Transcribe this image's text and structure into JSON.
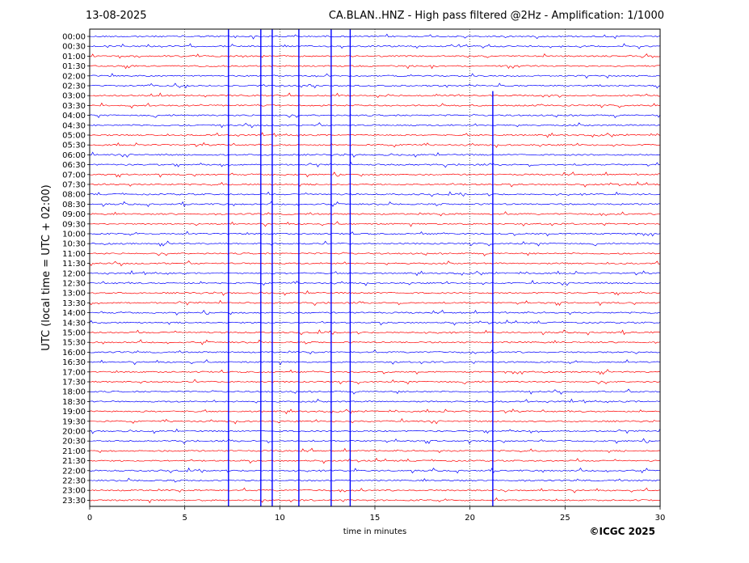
{
  "header": {
    "date": "13-08-2025",
    "title": "CA.BLAN..HNZ - High pass filtered @2Hz - Amplification: 1/1000"
  },
  "footer": {
    "copyright": "©ICGC 2025"
  },
  "chart_data": {
    "type": "line",
    "title": "CA.BLAN..HNZ - High pass filtered @2Hz - Amplification: 1/1000",
    "xlabel": "time in minutes",
    "ylabel": "UTC (local time = UTC + 02:00)",
    "xlim": [
      0,
      30
    ],
    "xticks": [
      0,
      5,
      10,
      15,
      20,
      25,
      30
    ],
    "grid": "vertical dotted lines at 5-minute ticks",
    "row_labels": [
      "00:00",
      "00:30",
      "01:00",
      "01:30",
      "02:00",
      "02:30",
      "03:00",
      "03:30",
      "04:00",
      "04:30",
      "05:00",
      "05:30",
      "06:00",
      "06:30",
      "07:00",
      "07:30",
      "08:00",
      "08:30",
      "09:00",
      "09:30",
      "10:00",
      "10:30",
      "11:00",
      "11:30",
      "12:00",
      "12:30",
      "13:00",
      "13:30",
      "14:00",
      "14:30",
      "15:00",
      "15:30",
      "16:00",
      "16:30",
      "17:00",
      "17:30",
      "18:00",
      "18:30",
      "19:00",
      "19:30",
      "20:00",
      "20:30",
      "21:00",
      "21:30",
      "22:00",
      "22:30",
      "23:00",
      "23:30"
    ],
    "colors": {
      "odd_hour": "#ff0000",
      "even_hour": "#0000ff",
      "frame": "#000000"
    },
    "large_transients": [
      {
        "row": "00:00",
        "minute": 7.3
      },
      {
        "row": "00:00",
        "minute": 9.0
      },
      {
        "row": "00:00",
        "minute": 9.6
      },
      {
        "row": "00:00",
        "minute": 11.0
      },
      {
        "row": "00:00",
        "minute": 12.7
      },
      {
        "row": "00:00",
        "minute": 13.7
      },
      {
        "row": "04:00",
        "minute": 21.2
      }
    ]
  }
}
